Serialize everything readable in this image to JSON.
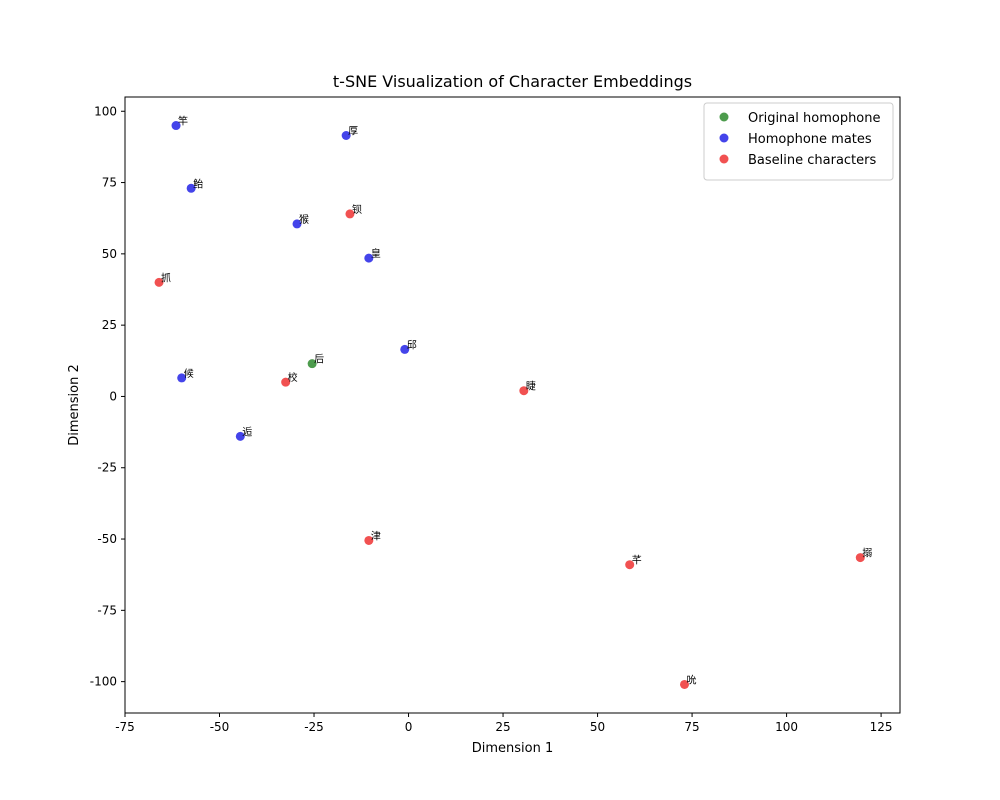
{
  "chart_data": {
    "type": "scatter",
    "title": "t-SNE Visualization of Character Embeddings",
    "xlabel": "Dimension 1",
    "ylabel": "Dimension 2",
    "xlim": [
      -75,
      130
    ],
    "ylim": [
      -111,
      105
    ],
    "xticks": [
      -75,
      -50,
      -25,
      0,
      25,
      50,
      75,
      100,
      125
    ],
    "xtick_labels": [
      "-75",
      "-50",
      "-25",
      "0",
      "25",
      "50",
      "75",
      "100",
      "125"
    ],
    "yticks": [
      -100,
      -75,
      -50,
      -25,
      0,
      25,
      50,
      75,
      100
    ],
    "ytick_labels": [
      "-100",
      "-75",
      "-50",
      "-25",
      "0",
      "25",
      "50",
      "75",
      "100"
    ],
    "grid": false,
    "legend_position": "top-right",
    "series": [
      {
        "name": "Original homophone",
        "color": "#2e8b2e",
        "points": [
          {
            "x": -25.5,
            "y": 11.5,
            "label": "后"
          }
        ]
      },
      {
        "name": "Homophone mates",
        "color": "#2323e6",
        "points": [
          {
            "x": -61.5,
            "y": 95,
            "label": "竿"
          },
          {
            "x": -16.5,
            "y": 91.5,
            "label": "厚"
          },
          {
            "x": -57.5,
            "y": 73,
            "label": "鲐"
          },
          {
            "x": -29.5,
            "y": 60.5,
            "label": "猴"
          },
          {
            "x": -10.5,
            "y": 48.5,
            "label": "皇"
          },
          {
            "x": -1,
            "y": 16.5,
            "label": "邱"
          },
          {
            "x": -60,
            "y": 6.5,
            "label": "候"
          },
          {
            "x": -44.5,
            "y": -14,
            "label": "逅"
          }
        ]
      },
      {
        "name": "Baseline characters",
        "color": "#ef3333",
        "points": [
          {
            "x": -15.5,
            "y": 64,
            "label": "钡"
          },
          {
            "x": -66,
            "y": 40,
            "label": "抓"
          },
          {
            "x": -32.5,
            "y": 5,
            "label": "校"
          },
          {
            "x": 30.5,
            "y": 2,
            "label": "睫"
          },
          {
            "x": -10.5,
            "y": -50.5,
            "label": "津"
          },
          {
            "x": 58.5,
            "y": -59,
            "label": "芊"
          },
          {
            "x": 119.5,
            "y": -56.5,
            "label": "搦"
          },
          {
            "x": 73,
            "y": -101,
            "label": "吮"
          }
        ]
      }
    ]
  }
}
